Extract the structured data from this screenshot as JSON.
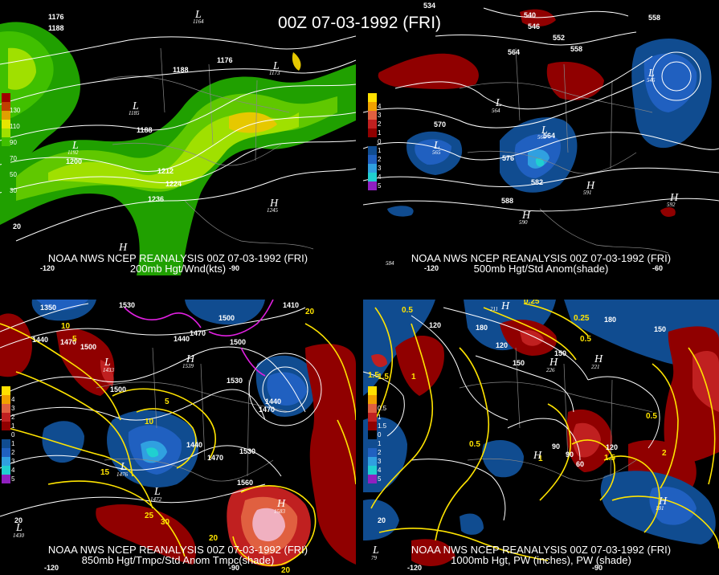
{
  "title": "00Z 07-03-1992 (FRI)",
  "panels": [
    {
      "id": "p200",
      "caption_line1": "NOAA NWS NCEP REANALYSIS 00Z 07-03-1992 (FRI)",
      "caption_line2": "200mb Hgt/Wnd(kts)",
      "legend_values": [
        "130",
        "110",
        "90",
        "70",
        "50",
        "30"
      ],
      "legend_colors": [
        "#a00000",
        "#c04000",
        "#e0a000",
        "#e6e600",
        "#a0e000",
        "#40c000",
        "#20a000"
      ],
      "contour_labels": [
        "1176",
        "1188",
        "1176",
        "1188",
        "1188",
        "1200",
        "1212",
        "1224",
        "1236"
      ],
      "centers": [
        {
          "letter": "L",
          "value": "1164"
        },
        {
          "letter": "L",
          "value": "1173"
        },
        {
          "letter": "L",
          "value": "1185"
        },
        {
          "letter": "L",
          "value": "1192"
        },
        {
          "letter": "H",
          "value": "1245"
        },
        {
          "letter": "H",
          "value": ""
        }
      ],
      "map_labels": [
        "-120",
        "-90",
        "20"
      ]
    },
    {
      "id": "p500",
      "caption_line1": "NOAA NWS NCEP REANALYSIS 00Z 07-03-1992 (FRI)",
      "caption_line2": "500mb Hgt/Std Anom(shade)",
      "legend_top": "H",
      "legend_values": [
        "4",
        "3",
        "2",
        "1",
        "0",
        "1",
        "2",
        "3",
        "4",
        "5"
      ],
      "legend_colors": [
        "#ffe000",
        "#f0a000",
        "#e06040",
        "#c02020",
        "#900000",
        "#000000",
        "#104c90",
        "#2060c0",
        "#30a0e0",
        "#20d0d0",
        "#9020c0"
      ],
      "contour_labels": [
        "534",
        "540",
        "546",
        "552",
        "558",
        "558",
        "564",
        "564",
        "570",
        "576",
        "582",
        "588"
      ],
      "centers": [
        {
          "letter": "L",
          "value": "565"
        },
        {
          "letter": "L",
          "value": "564"
        },
        {
          "letter": "L",
          "value": "566"
        },
        {
          "letter": "L",
          "value": "545"
        },
        {
          "letter": "H",
          "value": "591"
        },
        {
          "letter": "H",
          "value": "590"
        },
        {
          "letter": "H",
          "value": "592"
        }
      ],
      "map_labels": [
        "-120",
        "-60",
        "584"
      ]
    },
    {
      "id": "p850",
      "caption_line1": "NOAA NWS NCEP REANALYSIS 00Z 07-03-1992 (FRI)",
      "caption_line2": "850mb Hgt/Tmpc/Std Anom Tmpc(shade)",
      "legend_top": "H",
      "legend_values": [
        "4",
        "3",
        "2",
        "1",
        "0",
        "1",
        "2",
        "3",
        "4",
        "5"
      ],
      "legend_colors": [
        "#ffe000",
        "#f0a000",
        "#e06040",
        "#c02020",
        "#900000",
        "#000000",
        "#104c90",
        "#2060c0",
        "#30a0e0",
        "#20d0d0",
        "#9020c0"
      ],
      "contour_labels": [
        "1350",
        "1440",
        "1470",
        "1500",
        "1530",
        "1500",
        "1470",
        "1440",
        "1410",
        "1500",
        "1530",
        "1440",
        "1470",
        "1500",
        "1440",
        "1470",
        "1530",
        "1560"
      ],
      "temp_labels": [
        "10",
        "5",
        "15",
        "10",
        "5",
        "20",
        "25",
        "30",
        "20",
        "20"
      ],
      "centers": [
        {
          "letter": "L",
          "value": "1433"
        },
        {
          "letter": "L",
          "value": "1476"
        },
        {
          "letter": "L",
          "value": "1472"
        },
        {
          "letter": "H",
          "value": "1539"
        },
        {
          "letter": "H",
          "value": "1583"
        },
        {
          "letter": "L",
          "value": "1430"
        }
      ],
      "map_labels": [
        "-120",
        "-90",
        "20"
      ]
    },
    {
      "id": "p1000",
      "caption_line1": "NOAA NWS NCEP REANALYSIS 00Z 07-03-1992 (FRI)",
      "caption_line2": "1000mb Hgt, PW (inches), PW (shade)",
      "legend_top": "H",
      "legend_values": [
        "0.5",
        "1",
        "1.5",
        "0",
        "1",
        "2",
        "3",
        "4",
        "5"
      ],
      "legend_colors": [
        "#ffe000",
        "#f0a000",
        "#e06040",
        "#c02020",
        "#900000",
        "#000000",
        "#104c90",
        "#2060c0",
        "#30a0e0",
        "#20d0d0",
        "#9020c0"
      ],
      "contour_labels": [
        "120",
        "180",
        "150",
        "150",
        "120",
        "90",
        "60",
        "90",
        "120",
        "150",
        "180"
      ],
      "pw_labels": [
        "0.25",
        "0.5",
        "0.25",
        "0.5",
        "1",
        "1.5",
        "0.5",
        "1",
        "1.5",
        "0.5",
        "1.5",
        "2"
      ],
      "centers": [
        {
          "letter": "H",
          "value": "226"
        },
        {
          "letter": "H",
          "value": "221"
        },
        {
          "letter": "H",
          "value": "211"
        },
        {
          "letter": "H",
          "value": ""
        },
        {
          "letter": "L",
          "value": "79"
        },
        {
          "letter": "H",
          "value": "181"
        }
      ],
      "map_labels": [
        "-120",
        "-90",
        "20"
      ]
    }
  ]
}
